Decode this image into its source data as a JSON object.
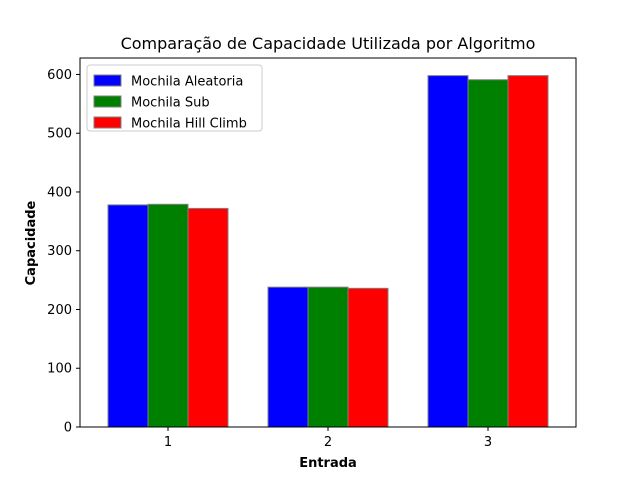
{
  "chart_data": {
    "type": "bar",
    "title": "Comparação de Capacidade Utilizada por Algoritmo",
    "xlabel": "Entrada",
    "ylabel": "Capacidade",
    "categories": [
      "1",
      "2",
      "3"
    ],
    "series": [
      {
        "name": "Mochila Aleatoria",
        "color": "#0000ff",
        "values": [
          378,
          238,
          598
        ]
      },
      {
        "name": "Mochila Sub",
        "color": "#008000",
        "values": [
          379,
          238,
          591
        ]
      },
      {
        "name": "Mochila Hill Climb",
        "color": "#ff0000",
        "values": [
          372,
          236,
          598
        ]
      }
    ],
    "ylim": [
      0,
      628
    ],
    "yticks": [
      0,
      100,
      200,
      300,
      400,
      500,
      600
    ],
    "grid": false,
    "legend": "top-left",
    "bar_edge_color": "#808080"
  }
}
